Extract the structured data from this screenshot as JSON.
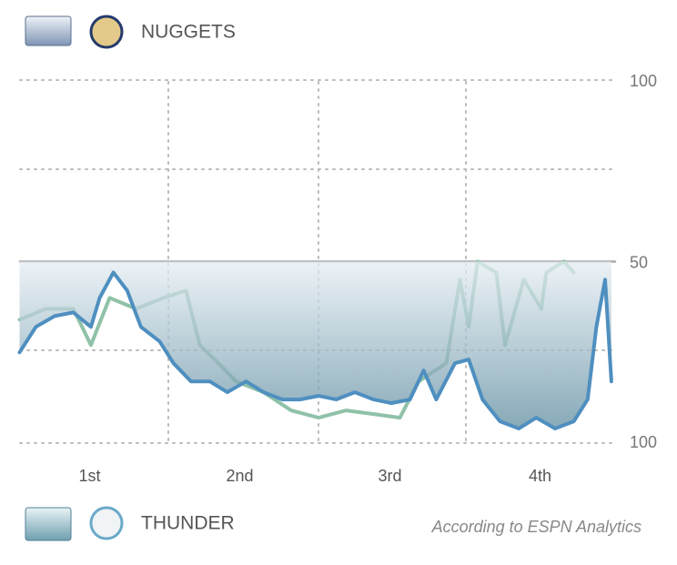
{
  "chart_data": {
    "type": "line",
    "team_top": "NUGGETS",
    "team_bottom": "THUNDER",
    "source": "According to ESPN Analytics",
    "categories": [
      "1st",
      "2nd",
      "3rd",
      "4th"
    ],
    "xlim": [
      0,
      48
    ],
    "ylim": [
      0,
      100
    ],
    "yticks": [
      50,
      100
    ],
    "y2lim": [
      100,
      0
    ],
    "y2ticks": [
      100
    ],
    "series": [
      {
        "color": "#8fc2a8",
        "x": [
          0.4,
          2.5,
          4.7,
          6.1,
          7.6,
          9.7,
          11.9,
          13.7,
          14.8,
          16.3,
          17.7,
          19.9,
          22.1,
          24.3,
          26.5,
          28.7,
          30.8,
          32.3,
          34.5,
          35.6,
          36.3,
          37.0,
          38.5,
          39.2,
          40.7,
          42.1,
          42.5,
          43.9,
          44.7
        ],
        "values": [
          34,
          37,
          37,
          27,
          40,
          37,
          40,
          42,
          27,
          22,
          17,
          14,
          9,
          7,
          9,
          8,
          7,
          17,
          22,
          45,
          32,
          50,
          47,
          27,
          45,
          37,
          47,
          50,
          47
        ]
      },
      {
        "color": "#4f8fc0",
        "x": [
          0.4,
          1.7,
          3.2,
          4.7,
          6.1,
          6.8,
          7.9,
          9.0,
          10.1,
          11.6,
          12.7,
          14.1,
          15.6,
          17.0,
          18.5,
          19.9,
          21.4,
          22.8,
          24.3,
          25.7,
          27.2,
          28.7,
          30.1,
          31.6,
          32.7,
          33.7,
          35.2,
          36.3,
          37.4,
          38.8,
          40.3,
          41.7,
          43.2,
          44.7,
          45.8,
          46.5,
          47.2,
          47.7
        ],
        "values": [
          25,
          32,
          35,
          36,
          32,
          40,
          47,
          42,
          32,
          28,
          22,
          17,
          17,
          14,
          17,
          14,
          12,
          12,
          13,
          12,
          14,
          12,
          11,
          12,
          20,
          12,
          22,
          23,
          12,
          6,
          4,
          7,
          4,
          6,
          12,
          32,
          45,
          17
        ]
      }
    ]
  }
}
